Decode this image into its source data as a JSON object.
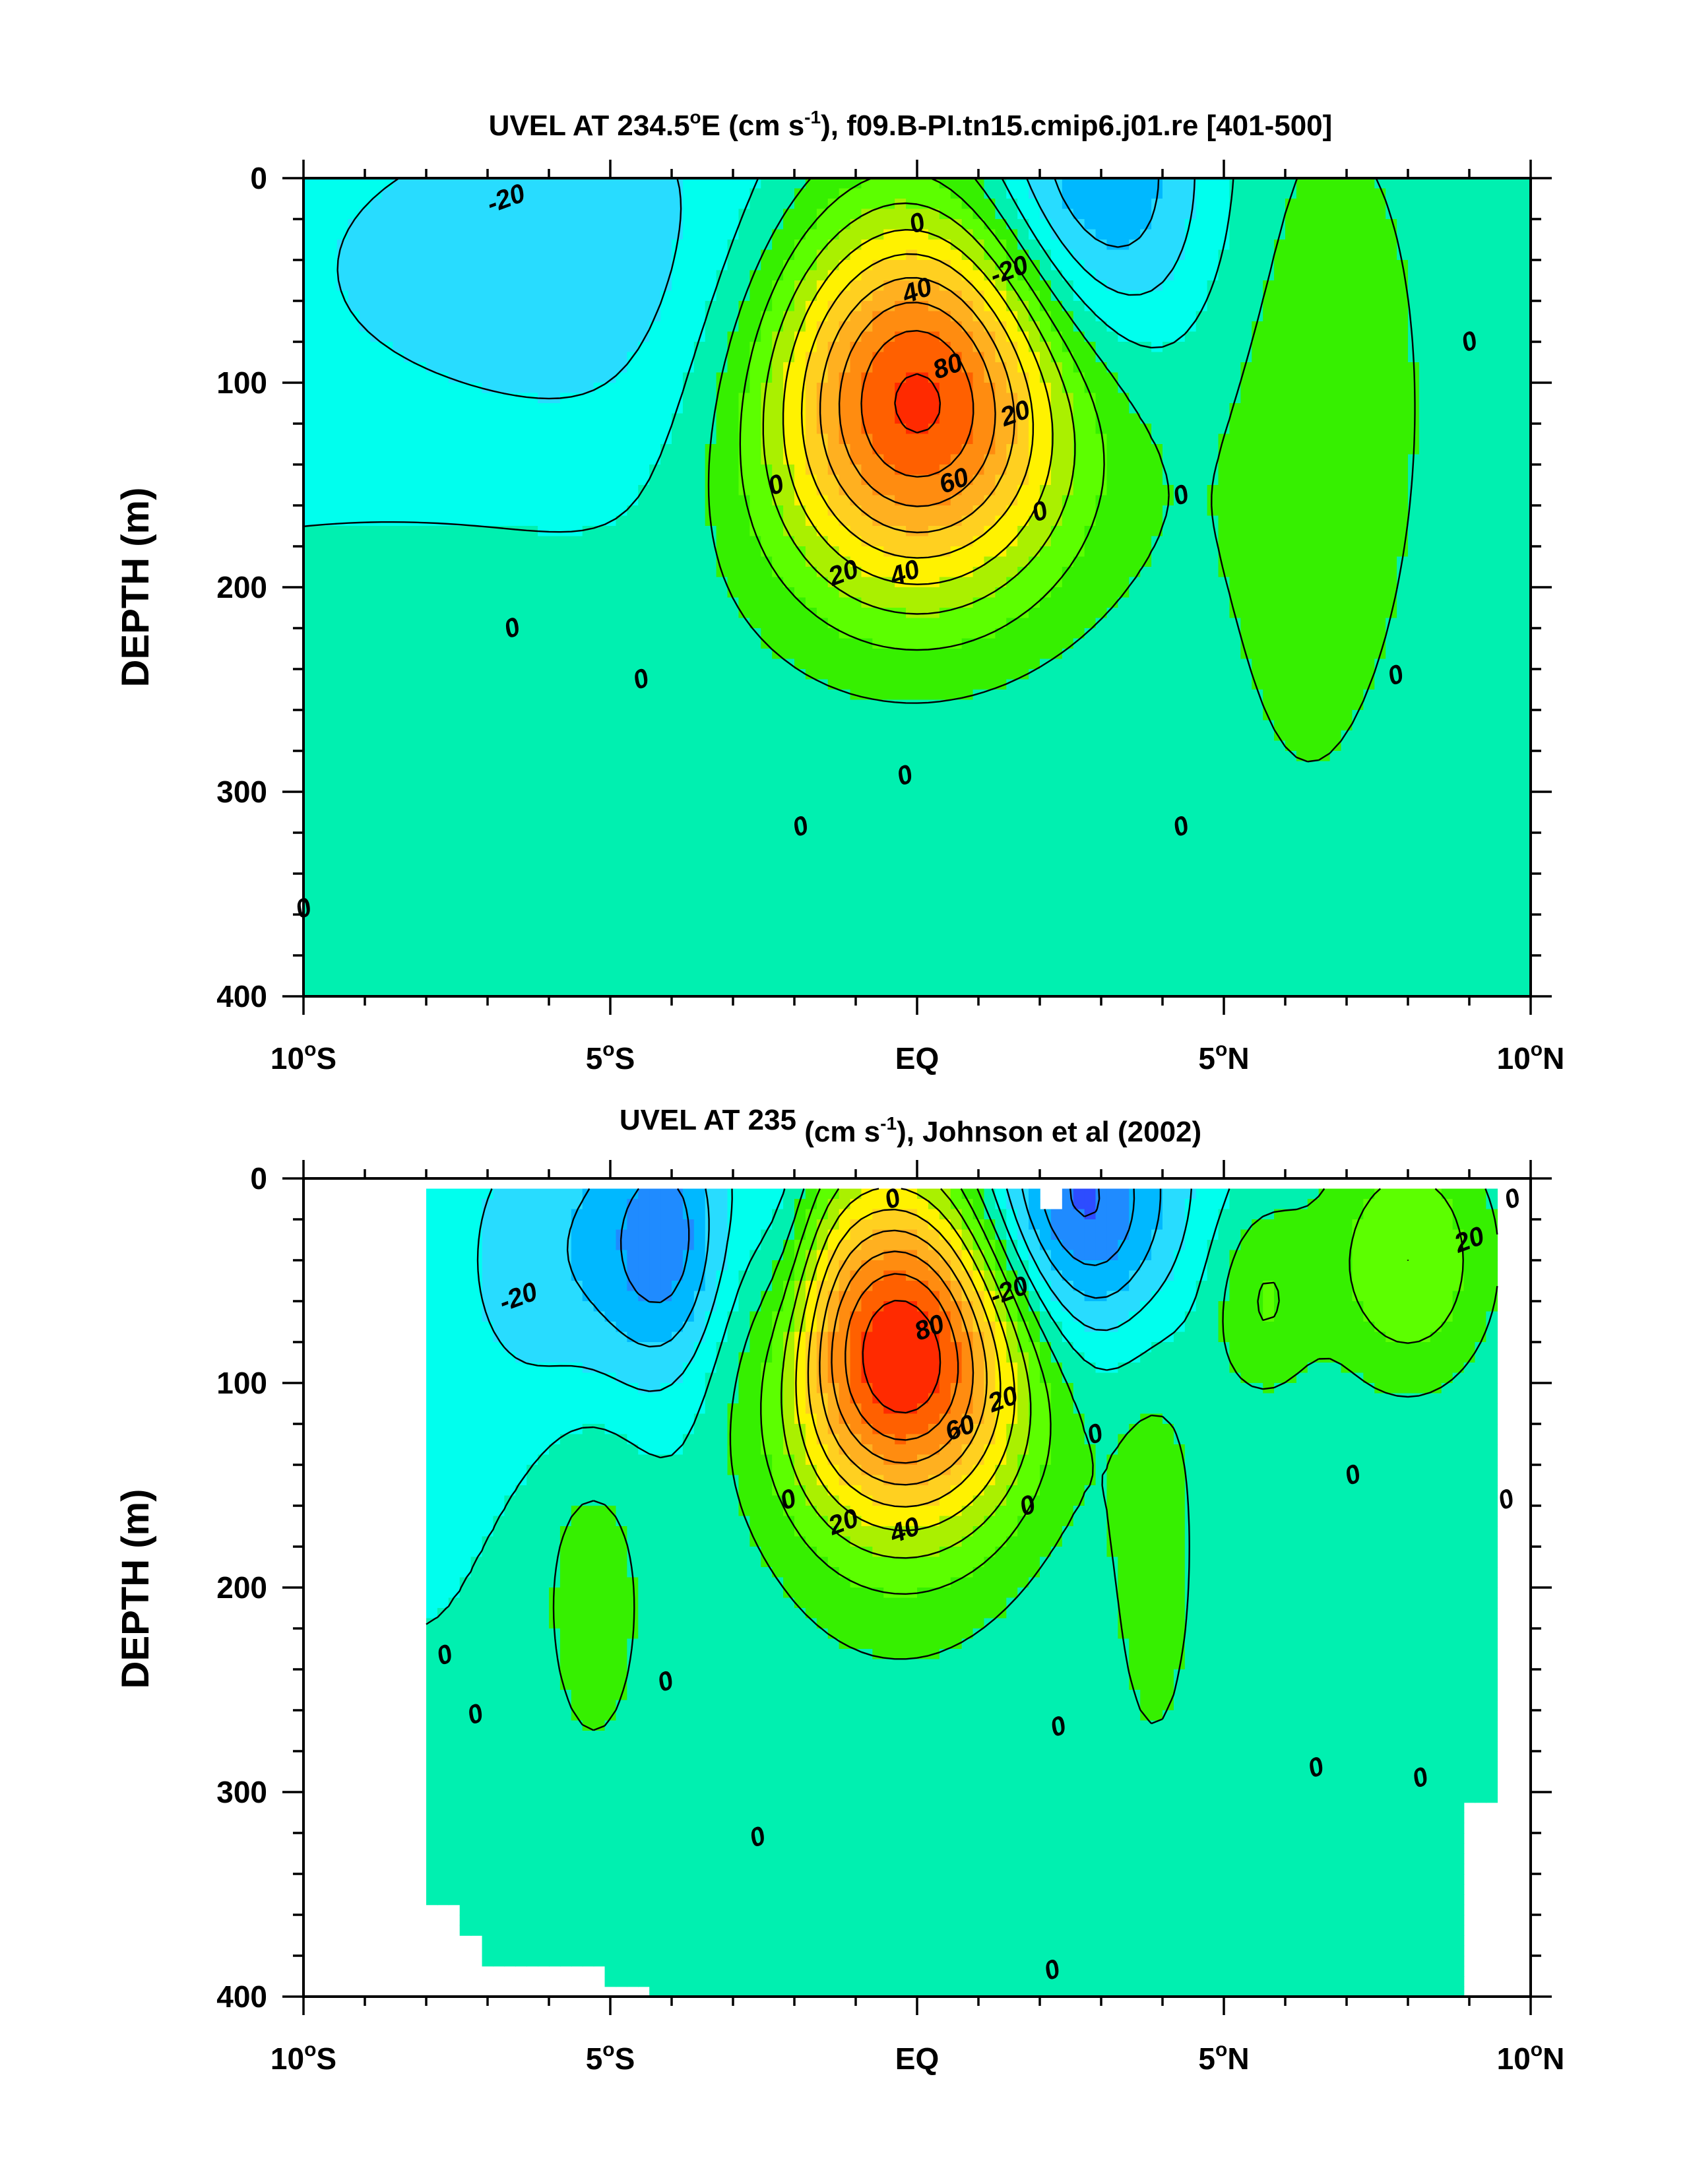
{
  "chart_data": [
    {
      "type": "contour",
      "title": "UVEL AT 234.5°E (cm s⁻¹), f09.B-PI.tn15.cmip6.j01.re [401-500]",
      "title_parts": {
        "pre": "UVEL AT 234.5",
        "deg": "o",
        "mid": "E (cm s",
        "sup": "-1",
        "post": "), f09.B-PI.tn15.cmip6.j01.re [401-500]"
      },
      "xlabel": "",
      "ylabel": "DEPTH (m)",
      "xlim": [
        -10,
        10
      ],
      "ylim": [
        0,
        400
      ],
      "y_inverted": true,
      "x_ticks": [
        {
          "v": -10,
          "num": "10",
          "deg": "o",
          "suf": "S"
        },
        {
          "v": -5,
          "num": "5",
          "deg": "o",
          "suf": "S"
        },
        {
          "v": 0,
          "num": "EQ",
          "deg": "",
          "suf": ""
        },
        {
          "v": 5,
          "num": "5",
          "deg": "o",
          "suf": "N"
        },
        {
          "v": 10,
          "num": "10",
          "deg": "o",
          "suf": "N"
        }
      ],
      "y_ticks": [
        "0",
        "100",
        "200",
        "300",
        "400"
      ],
      "y_tick_values": [
        0,
        100,
        200,
        300,
        400
      ],
      "contour_interval": 10,
      "features": [
        {
          "name": "equatorial-undercurrent",
          "lat": 0.0,
          "depth": 105,
          "max": 100,
          "sx": 1.85,
          "sy": 70
        },
        {
          "name": "south-equatorial-current-north",
          "lat": 2.8,
          "depth": 10,
          "max": -36,
          "sx": 1.3,
          "sy": 60
        },
        {
          "name": "south-equatorial-current-south",
          "lat": -5.0,
          "depth": 50,
          "max": -18,
          "sx": 4.5,
          "sy": 75
        },
        {
          "name": "ncc-core",
          "lat": 6.7,
          "depth": 80,
          "max": 12,
          "sx": 1.3,
          "sy": 110
        },
        {
          "name": "south-deep-jet",
          "lat": -7.0,
          "depth": 400,
          "max": 10,
          "sx": 3.0,
          "sy": 180
        },
        {
          "name": "north-deep-band",
          "lat": 6.2,
          "depth": 300,
          "max": 8,
          "sx": 2.2,
          "sy": 220
        }
      ],
      "contour_labels": [
        {
          "text": "-20",
          "x": -6.7,
          "y": 10
        },
        {
          "text": "0",
          "x": 0.0,
          "y": 22
        },
        {
          "text": "-20",
          "x": 1.5,
          "y": 45
        },
        {
          "text": "40",
          "x": 0.0,
          "y": 55
        },
        {
          "text": "80",
          "x": 0.5,
          "y": 92
        },
        {
          "text": "20",
          "x": 1.6,
          "y": 115
        },
        {
          "text": "60",
          "x": 0.6,
          "y": 148
        },
        {
          "text": "0",
          "x": -2.3,
          "y": 150
        },
        {
          "text": "0",
          "x": 2.0,
          "y": 163
        },
        {
          "text": "0",
          "x": 4.3,
          "y": 155
        },
        {
          "text": "0",
          "x": 9.0,
          "y": 80
        },
        {
          "text": "20",
          "x": -1.2,
          "y": 193
        },
        {
          "text": "40",
          "x": -0.2,
          "y": 193
        },
        {
          "text": "0",
          "x": -6.6,
          "y": 220
        },
        {
          "text": "0",
          "x": -4.5,
          "y": 245
        },
        {
          "text": "0",
          "x": 7.8,
          "y": 243
        },
        {
          "text": "0",
          "x": -0.2,
          "y": 292
        },
        {
          "text": "0",
          "x": -1.9,
          "y": 317
        },
        {
          "text": "0",
          "x": 4.3,
          "y": 317
        },
        {
          "text": "0",
          "x": -10.0,
          "y": 357
        }
      ],
      "masked_regions": []
    },
    {
      "type": "contour",
      "title": "UVEL AT 235 (cm s⁻¹), Johnson et al (2002)",
      "title_parts": {
        "pre": "UVEL AT 235",
        "deg": "",
        "mid": " (cm s",
        "sup": "-1",
        "post": "), Johnson et al (2002)"
      },
      "xlabel": "",
      "ylabel": "DEPTH (m)",
      "xlim": [
        -10,
        10
      ],
      "ylim": [
        0,
        400
      ],
      "y_inverted": true,
      "x_ticks": [
        {
          "v": -10,
          "num": "10",
          "deg": "o",
          "suf": "S"
        },
        {
          "v": -5,
          "num": "5",
          "deg": "o",
          "suf": "S"
        },
        {
          "v": 0,
          "num": "EQ",
          "deg": "",
          "suf": ""
        },
        {
          "v": 5,
          "num": "5",
          "deg": "o",
          "suf": "N"
        },
        {
          "v": 10,
          "num": "10",
          "deg": "o",
          "suf": "N"
        }
      ],
      "y_ticks": [
        "0",
        "100",
        "200",
        "300",
        "400"
      ],
      "y_tick_values": [
        0,
        100,
        200,
        300,
        400
      ],
      "contour_interval": 10,
      "features": [
        {
          "name": "equatorial-undercurrent",
          "lat": -0.2,
          "depth": 85,
          "max": 100,
          "sx": 1.5,
          "sy": 62
        },
        {
          "name": "south-equatorial-current-north",
          "lat": 2.5,
          "depth": 15,
          "max": -50,
          "sx": 1.2,
          "sy": 50
        },
        {
          "name": "sec-south-1",
          "lat": -5.4,
          "depth": 40,
          "max": -20,
          "sx": 1.5,
          "sy": 60
        },
        {
          "name": "sec-south-2",
          "lat": -4.0,
          "depth": 30,
          "max": -26,
          "sx": 0.7,
          "sy": 45
        },
        {
          "name": "sec-south-3",
          "lat": -2.2,
          "depth": 30,
          "max": -18,
          "sx": 0.5,
          "sy": 60
        },
        {
          "name": "ncc-jet",
          "lat": 8.0,
          "depth": 40,
          "max": 30,
          "sx": 1.0,
          "sy": 45
        },
        {
          "name": "ncc-patch",
          "lat": 5.6,
          "depth": 60,
          "max": 20,
          "sx": 0.6,
          "sy": 35
        },
        {
          "name": "south-jet",
          "lat": -5.3,
          "depth": 200,
          "max": 15,
          "sx": 0.7,
          "sy": 70
        },
        {
          "name": "mid-north-jet",
          "lat": 3.9,
          "depth": 180,
          "max": 14,
          "sx": 0.6,
          "sy": 90
        },
        {
          "name": "deep-mid",
          "lat": -0.5,
          "depth": 320,
          "max": 6,
          "sx": 2.5,
          "sy": 120
        }
      ],
      "contour_labels": [
        {
          "text": "0",
          "x": -0.4,
          "y": 10
        },
        {
          "text": "-20",
          "x": -6.5,
          "y": 58
        },
        {
          "text": "-20",
          "x": 1.5,
          "y": 55
        },
        {
          "text": "80",
          "x": 0.2,
          "y": 73
        },
        {
          "text": "20",
          "x": 9.0,
          "y": 30
        },
        {
          "text": "0",
          "x": 9.7,
          "y": 10
        },
        {
          "text": "20",
          "x": 1.4,
          "y": 108
        },
        {
          "text": "0",
          "x": 2.9,
          "y": 125
        },
        {
          "text": "60",
          "x": 0.7,
          "y": 122
        },
        {
          "text": "0",
          "x": 7.1,
          "y": 145
        },
        {
          "text": "0",
          "x": -2.1,
          "y": 157
        },
        {
          "text": "0",
          "x": 1.8,
          "y": 160
        },
        {
          "text": "0",
          "x": 9.6,
          "y": 157
        },
        {
          "text": "20",
          "x": -1.2,
          "y": 168
        },
        {
          "text": "40",
          "x": -0.2,
          "y": 172
        },
        {
          "text": "0",
          "x": -7.7,
          "y": 233
        },
        {
          "text": "0",
          "x": -4.1,
          "y": 246
        },
        {
          "text": "0",
          "x": -7.2,
          "y": 262
        },
        {
          "text": "0",
          "x": 2.3,
          "y": 268
        },
        {
          "text": "0",
          "x": 6.5,
          "y": 288
        },
        {
          "text": "0",
          "x": 8.2,
          "y": 293
        },
        {
          "text": "0",
          "x": -2.6,
          "y": 322
        },
        {
          "text": "0",
          "x": 2.2,
          "y": 387
        }
      ],
      "masked_regions": [
        {
          "x0": -10.0,
          "x1": -8.0,
          "y0": 0,
          "y1": 400
        },
        {
          "x0": -8.0,
          "x1": -7.4,
          "y0": 355,
          "y1": 400
        },
        {
          "x0": -7.4,
          "x1": -7.1,
          "y0": 372,
          "y1": 400
        },
        {
          "x0": -7.1,
          "x1": -6.5,
          "y0": 385,
          "y1": 400
        },
        {
          "x0": -6.5,
          "x1": -5.0,
          "y0": 387,
          "y1": 400
        },
        {
          "x0": -5.0,
          "x1": -4.4,
          "y0": 395,
          "y1": 400
        },
        {
          "x0": 2.0,
          "x1": 2.3,
          "y0": 0,
          "y1": 15
        },
        {
          "x0": 9.0,
          "x1": 10.0,
          "y0": 315,
          "y1": 400
        },
        {
          "x0": 9.0,
          "x1": 9.4,
          "y0": 305,
          "y1": 315
        },
        {
          "x0": 9.4,
          "x1": 10.0,
          "y0": 0,
          "y1": 315
        },
        {
          "x0": -10.0,
          "x1": 10.0,
          "y0": 0,
          "y1": 5
        }
      ]
    }
  ]
}
